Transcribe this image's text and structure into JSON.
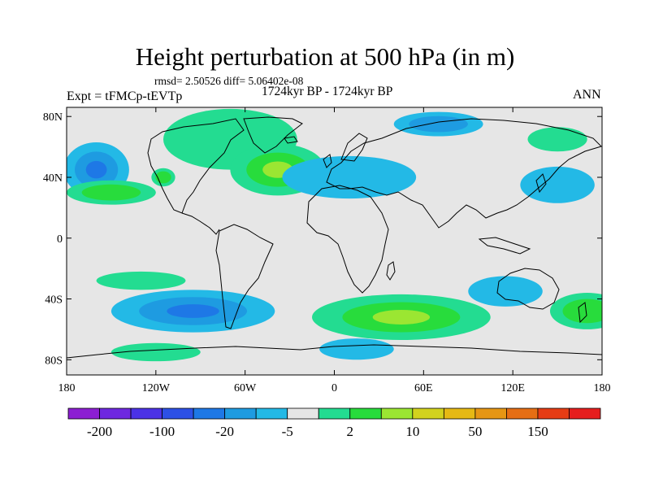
{
  "title": "Height perturbation at 500 hPa (in m)",
  "stats_line": "rmsd= 2.50526 diff= 5.06402e-08",
  "period": "1724kyr BP - 1724kyr BP",
  "experiment": "Expt = tFMCp-tEVTp",
  "season": "ANN",
  "lat_ticks": [
    {
      "lat": 80,
      "label": "80N"
    },
    {
      "lat": 40,
      "label": "40N"
    },
    {
      "lat": 0,
      "label": "0"
    },
    {
      "lat": -40,
      "label": "40S"
    },
    {
      "lat": -80,
      "label": "80S"
    }
  ],
  "lon_ticks": [
    {
      "lon": -180,
      "label": "180"
    },
    {
      "lon": -120,
      "label": "120W"
    },
    {
      "lon": -60,
      "label": "60W"
    },
    {
      "lon": 0,
      "label": "0"
    },
    {
      "lon": 60,
      "label": "60E"
    },
    {
      "lon": 120,
      "label": "120E"
    },
    {
      "lon": 180,
      "label": "180"
    }
  ],
  "colorbar": {
    "colors": [
      "#8c1ed2",
      "#6e28e0",
      "#4b32e6",
      "#2d50e6",
      "#1e78e6",
      "#1e9be1",
      "#23b9e6",
      "#e6e6e6",
      "#23dc91",
      "#28dc3c",
      "#9be632",
      "#d2d21e",
      "#e6b914",
      "#e69614",
      "#e66e14",
      "#e63c14",
      "#e61e1e"
    ],
    "labels": [
      {
        "after_box": 1,
        "text": "-200"
      },
      {
        "after_box": 3,
        "text": "-100"
      },
      {
        "after_box": 5,
        "text": "-20"
      },
      {
        "after_box": 7,
        "text": "-5"
      },
      {
        "after_box": 9,
        "text": "2"
      },
      {
        "after_box": 11,
        "text": "10"
      },
      {
        "after_box": 13,
        "text": "50"
      },
      {
        "after_box": 15,
        "text": "150"
      }
    ]
  },
  "colors": {
    "background_field": "#e6e6e6",
    "neg_light": "#23b9e6",
    "neg_mid": "#1e9be1",
    "neg_strong": "#1e78e6",
    "pos_light": "#23dc91",
    "pos_mid": "#28dc3c",
    "pos_strong": "#9be632"
  },
  "anomalies": [
    {
      "sign": "neg",
      "lon": -160,
      "lat": 45,
      "rlon": 22,
      "rlat": 18,
      "level": 3
    },
    {
      "sign": "pos",
      "lon": -115,
      "lat": 40,
      "rlon": 8,
      "rlat": 6,
      "level": 2
    },
    {
      "sign": "pos",
      "lon": -150,
      "lat": 30,
      "rlon": 30,
      "rlat": 8,
      "level": 2
    },
    {
      "sign": "pos",
      "lon": -70,
      "lat": 65,
      "rlon": 45,
      "rlat": 20,
      "level": 1
    },
    {
      "sign": "pos",
      "lon": -38,
      "lat": 45,
      "rlon": 32,
      "rlat": 17,
      "level": 3
    },
    {
      "sign": "neg",
      "lon": 10,
      "lat": 40,
      "rlon": 45,
      "rlat": 14,
      "level": 1
    },
    {
      "sign": "neg",
      "lon": 70,
      "lat": 75,
      "rlon": 30,
      "rlat": 8,
      "level": 2
    },
    {
      "sign": "pos",
      "lon": 150,
      "lat": 65,
      "rlon": 20,
      "rlat": 8,
      "level": 1
    },
    {
      "sign": "neg",
      "lon": 150,
      "lat": 35,
      "rlon": 25,
      "rlat": 12,
      "level": 1
    },
    {
      "sign": "pos",
      "lon": -130,
      "lat": -28,
      "rlon": 30,
      "rlat": 6,
      "level": 1
    },
    {
      "sign": "neg",
      "lon": -95,
      "lat": -48,
      "rlon": 55,
      "rlat": 14,
      "level": 3
    },
    {
      "sign": "pos",
      "lon": 45,
      "lat": -52,
      "rlon": 60,
      "rlat": 15,
      "level": 3
    },
    {
      "sign": "neg",
      "lon": 115,
      "lat": -35,
      "rlon": 25,
      "rlat": 10,
      "level": 1
    },
    {
      "sign": "pos",
      "lon": 170,
      "lat": -48,
      "rlon": 25,
      "rlat": 12,
      "level": 2
    },
    {
      "sign": "pos",
      "lon": -120,
      "lat": -75,
      "rlon": 30,
      "rlat": 6,
      "level": 1
    },
    {
      "sign": "neg",
      "lon": 15,
      "lat": -73,
      "rlon": 25,
      "rlat": 7,
      "level": 1
    }
  ]
}
